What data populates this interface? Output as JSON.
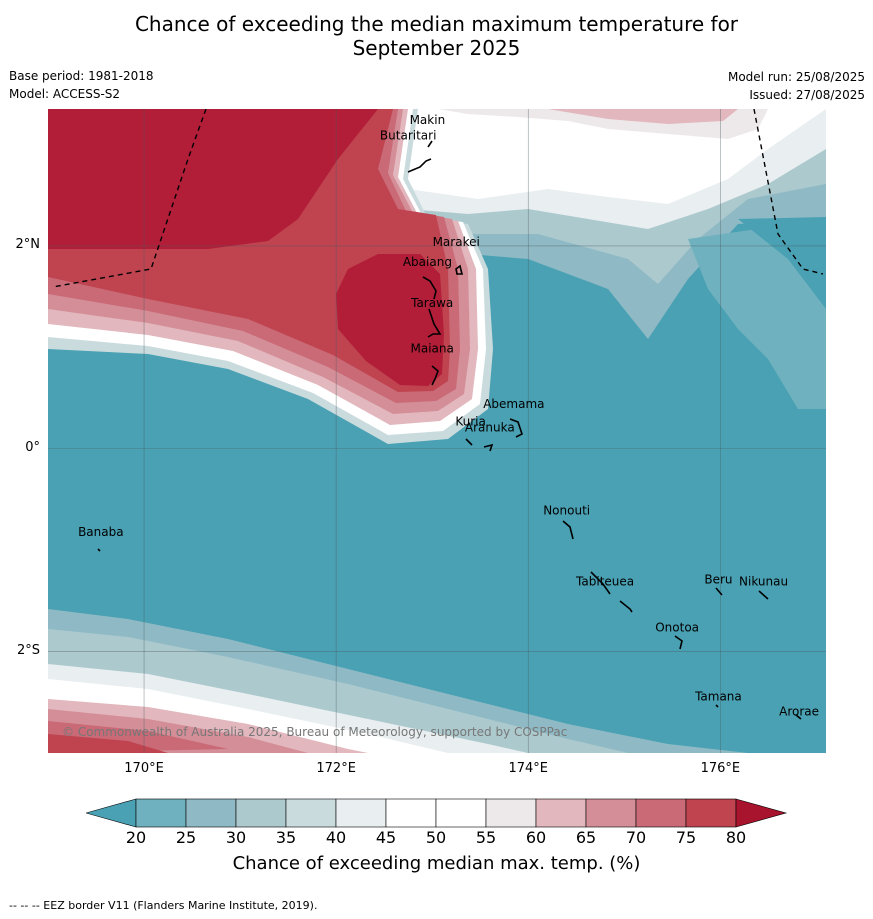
{
  "title_line1": "Chance of exceeding the median maximum temperature for",
  "title_line2": "September 2025",
  "base_period": "Base period: 1981-2018",
  "model": "Model: ACCESS-S2",
  "model_run": "Model run: 25/08/2025",
  "issued": "Issued: 27/08/2025",
  "map": {
    "lon_range": [
      169,
      177.1
    ],
    "lat_range": [
      -3.0,
      3.35
    ],
    "lat_labels": [
      {
        "value": 2,
        "label": "2°N"
      },
      {
        "value": 0,
        "label": "0°"
      },
      {
        "value": -2,
        "label": "2°S"
      }
    ],
    "lon_labels": [
      {
        "value": 170,
        "label": "170°E"
      },
      {
        "value": 172,
        "label": "172°E"
      },
      {
        "value": 174,
        "label": "174°E"
      },
      {
        "value": 176,
        "label": "176°E"
      }
    ],
    "copyright": "© Commonwealth of Australia 2025, Bureau of Meteorology, supported by COSPPac",
    "places": [
      {
        "name": "Makin",
        "lon": 172.95,
        "lat": 3.2
      },
      {
        "name": "Butaritari",
        "lon": 172.75,
        "lat": 3.05
      },
      {
        "name": "Marakei",
        "lon": 173.25,
        "lat": 2.0
      },
      {
        "name": "Abaiang",
        "lon": 172.95,
        "lat": 1.8
      },
      {
        "name": "Tarawa",
        "lon": 173.0,
        "lat": 1.4
      },
      {
        "name": "Maiana",
        "lon": 173.0,
        "lat": 0.95
      },
      {
        "name": "Abemama",
        "lon": 173.85,
        "lat": 0.4
      },
      {
        "name": "Kuria",
        "lon": 173.4,
        "lat": 0.23
      },
      {
        "name": "Aranuka",
        "lon": 173.6,
        "lat": 0.17
      },
      {
        "name": "Nonouti",
        "lon": 174.4,
        "lat": -0.65
      },
      {
        "name": "Banaba",
        "lon": 169.55,
        "lat": -0.86
      },
      {
        "name": "Tabiteuea",
        "lon": 174.8,
        "lat": -1.35
      },
      {
        "name": "Beru",
        "lon": 175.98,
        "lat": -1.33
      },
      {
        "name": "Nikunau",
        "lon": 176.45,
        "lat": -1.35
      },
      {
        "name": "Onotoa",
        "lon": 175.55,
        "lat": -1.8
      },
      {
        "name": "Tamana",
        "lon": 175.98,
        "lat": -2.48
      },
      {
        "name": "Arorae",
        "lon": 176.82,
        "lat": -2.63
      }
    ]
  },
  "colorbar": {
    "ticks": [
      "20",
      "25",
      "30",
      "35",
      "40",
      "45",
      "50",
      "55",
      "60",
      "65",
      "70",
      "75",
      "80"
    ],
    "under_color": "#49a1b3",
    "over_color": "#a8142d",
    "colors": [
      "#6fb1be",
      "#8fbac5",
      "#acc9ce",
      "#cadbde",
      "#e9eef0",
      "#ffffff",
      "#ffffff",
      "#ede9ea",
      "#e2b7bd",
      "#d48e98",
      "#c96a76",
      "#c04350"
    ],
    "label": "Chance of exceeding median max. temp. (%)"
  },
  "footnote": "--  --  -- EEZ border V11 (Flanders Marine Institute, 2019)."
}
